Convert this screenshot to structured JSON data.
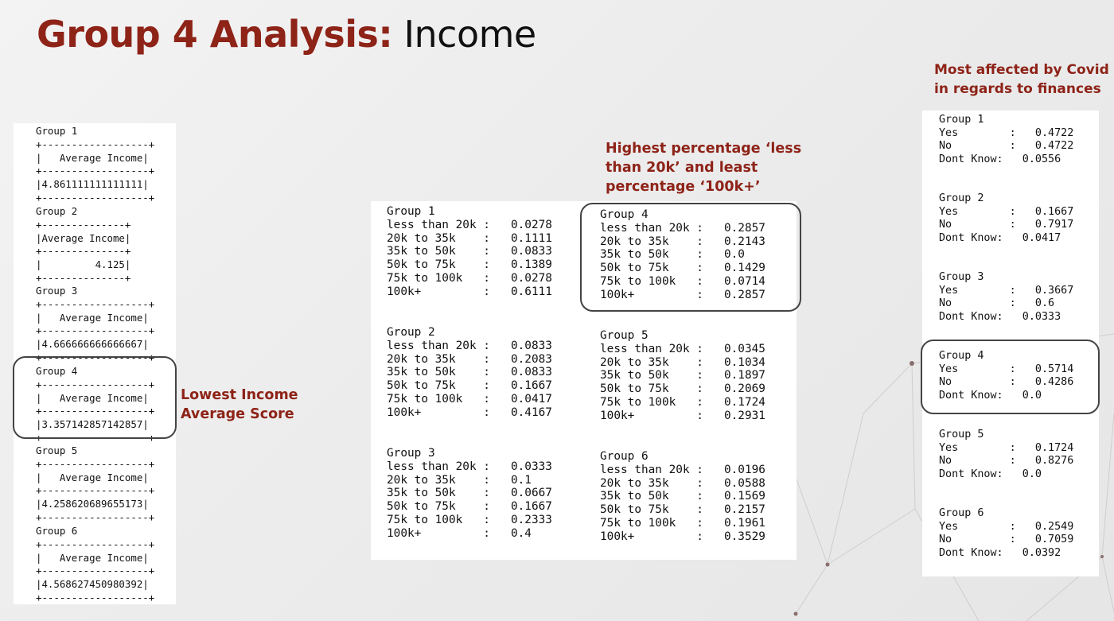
{
  "slide": {
    "title_accent": "Group 4 Analysis:",
    "title_rest": " Income"
  },
  "callouts": {
    "lowest_line1": "Lowest Income",
    "lowest_line2": "Average Score",
    "highest_line1": "Highest percentage ‘less",
    "highest_line2": "than 20k’ and least",
    "highest_line3": "percentage ‘100k+’",
    "covid_line1": "Most affected by Covid",
    "covid_line2": "in regards to finances"
  },
  "avg_income": [
    {
      "text": "Group 1\n+------------------+\n|   Average Income|\n+------------------+\n|4.861111111111111|\n+------------------+"
    },
    {
      "text": "Group 2\n+--------------+\n|Average Income|\n+--------------+\n|         4.125|\n+--------------+"
    },
    {
      "text": "Group 3\n+------------------+\n|   Average Income|\n+------------------+\n|4.666666666666667|\n+------------------+"
    },
    {
      "text": "Group 4\n+------------------+\n|   Average Income|\n+------------------+\n|3.357142857142857|\n+------------------+"
    },
    {
      "text": "Group 5\n+------------------+\n|   Average Income|\n+------------------+\n|4.258620689655173|\n+------------------+"
    },
    {
      "text": "Group 6\n+------------------+\n|   Average Income|\n+------------------+\n|4.568627450980392|\n+------------------+"
    }
  ],
  "income_brackets": [
    {
      "text": "Group 1\nless than 20k :   0.0278\n20k to 35k    :   0.1111\n35k to 50k    :   0.0833\n50k to 75k    :   0.1389\n75k to 100k   :   0.0278\n100k+         :   0.6111"
    },
    {
      "text": "Group 2\nless than 20k :   0.0833\n20k to 35k    :   0.2083\n35k to 50k    :   0.0833\n50k to 75k    :   0.1667\n75k to 100k   :   0.0417\n100k+         :   0.4167"
    },
    {
      "text": "Group 3\nless than 20k :   0.0333\n20k to 35k    :   0.1\n35k to 50k    :   0.0667\n50k to 75k    :   0.1667\n75k to 100k   :   0.2333\n100k+         :   0.4"
    },
    {
      "text": "Group 4\nless than 20k :   0.2857\n20k to 35k    :   0.2143\n35k to 50k    :   0.0\n50k to 75k    :   0.1429\n75k to 100k   :   0.0714\n100k+         :   0.2857"
    },
    {
      "text": "Group 5\nless than 20k :   0.0345\n20k to 35k    :   0.1034\n35k to 50k    :   0.1897\n50k to 75k    :   0.2069\n75k to 100k   :   0.1724\n100k+         :   0.2931"
    },
    {
      "text": "Group 6\nless than 20k :   0.0196\n20k to 35k    :   0.0588\n35k to 50k    :   0.1569\n50k to 75k    :   0.2157\n75k to 100k   :   0.1961\n100k+         :   0.3529"
    }
  ],
  "covid": [
    {
      "text": "Group 1\nYes        :   0.4722\nNo         :   0.4722\nDont Know:   0.0556"
    },
    {
      "text": "Group 2\nYes        :   0.1667\nNo         :   0.7917\nDont Know:   0.0417"
    },
    {
      "text": "Group 3\nYes        :   0.3667\nNo         :   0.6\nDont Know:   0.0333"
    },
    {
      "text": "Group 4\nYes        :   0.5714\nNo         :   0.4286\nDont Know:   0.0"
    },
    {
      "text": "Group 5\nYes        :   0.1724\nNo         :   0.8276\nDont Know:   0.0"
    },
    {
      "text": "Group 6\nYes        :   0.2549\nNo         :   0.7059\nDont Know:   0.0392"
    }
  ],
  "colors": {
    "accent": "#8e2318",
    "text": "#111111",
    "outline": "#444444"
  }
}
